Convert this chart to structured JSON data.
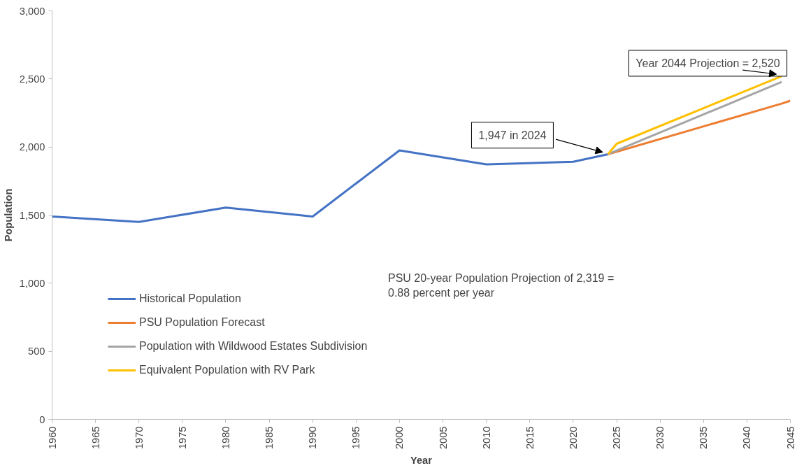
{
  "chart_data": {
    "type": "line",
    "xlabel": "Year",
    "ylabel": "Population",
    "xlim": [
      1960,
      2045
    ],
    "xticks": [
      1960,
      1965,
      1970,
      1975,
      1980,
      1985,
      1990,
      1995,
      2000,
      2005,
      2010,
      2015,
      2020,
      2025,
      2030,
      2035,
      2040,
      2045
    ],
    "ylim": [
      0,
      3000
    ],
    "yticks": [
      {
        "value": 0,
        "label": "0"
      },
      {
        "value": 500,
        "label": "500"
      },
      {
        "value": 1000,
        "label": "1,000"
      },
      {
        "value": 1500,
        "label": "1,500"
      },
      {
        "value": 2000,
        "label": "2,000"
      },
      {
        "value": 2500,
        "label": "2,500"
      },
      {
        "value": 3000,
        "label": "3,000"
      }
    ],
    "series": [
      {
        "name": "Historical Population",
        "color": "#4472c4",
        "x": [
          1960,
          1970,
          1980,
          1990,
          2000,
          2010,
          2020,
          2024
        ],
        "values": [
          1490,
          1450,
          1555,
          1490,
          1975,
          1872,
          1892,
          1947
        ]
      },
      {
        "name": "PSU Population Forecast",
        "color": "#ed7d31",
        "x": [
          2024,
          2044,
          2045
        ],
        "values": [
          1947,
          2319,
          2340
        ]
      },
      {
        "name": "Population with Wildwood Estates Subdivision",
        "color": "#a5a5a5",
        "x": [
          2024,
          2044
        ],
        "values": [
          1947,
          2478
        ]
      },
      {
        "name": "Equivalent Population with RV Park",
        "color": "#ffc000",
        "x": [
          2024,
          2025,
          2044
        ],
        "values": [
          1947,
          2024,
          2520
        ]
      }
    ],
    "annotations": [
      {
        "text": "1,947 in 2024",
        "x": 2024,
        "y": 1947
      },
      {
        "text": "Year 2044 Projection = 2,520",
        "x": 2044,
        "y": 2520
      },
      "PSU 20-year Population Projection of 2,319 =\n0.88 percent per year"
    ],
    "legend": "left",
    "grid": false,
    "line_style": "solid",
    "marker": "none"
  }
}
